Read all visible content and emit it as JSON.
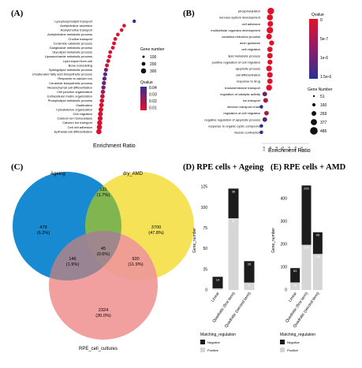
{
  "panels": {
    "A": {
      "letter": "(A)"
    },
    "B": {
      "letter": "(B)"
    },
    "C": {
      "letter": "(C)"
    },
    "D": {
      "letter": "(D)",
      "title": "RPE cells + Ageing"
    },
    "E": {
      "letter": "(E)",
      "title": "RPE cells + AMD"
    }
  },
  "chart_data": [
    {
      "id": "A",
      "type": "scatter",
      "xlabel": "Enrichment Ratio",
      "ylabel": "",
      "size_legend_title": "Gene number",
      "size_legend_values": [
        "100",
        "200",
        "300"
      ],
      "color_legend_title": "Qvalue",
      "color_legend_ticks": [
        "0.04",
        "0.03",
        "0.02",
        "0.01"
      ],
      "color_scale": [
        "#e0112a",
        "#3a2b95"
      ],
      "categories": [
        "Lysophospholipid transport",
        "Acetylcholine secretion",
        "Acetylcholine transport",
        "Acetylcholine metabolic process",
        "Choline transport",
        "Ceramide catabolic process",
        "Ganglioside metabolic process",
        "Glycolipid metabolic process",
        "Liposaccharide metabolic process",
        "Lipid export from cell",
        "Bone remodeling",
        "Sphingolipid metabolic process",
        "Unsaturated fatty acid biosynthetic process",
        "Response to calcium ion",
        "Ceramide biosynthetic process",
        "Mesenchymal cell differentiation",
        "Cell junction organization",
        "Extracellular matrix organization",
        "Phospholipid metabolic process",
        "Ossification",
        "Cytoskeleton organization",
        "Cell migration",
        "Calcium ion homeostasis",
        "Calcium ion transport",
        "Cell cell adhesion",
        "Epithelial cell differentiation"
      ],
      "enrichment": [
        21.0,
        17.0,
        16.0,
        14.5,
        13.5,
        13.0,
        12.5,
        11.5,
        11.2,
        10.7,
        10.2,
        9.8,
        9.5,
        9.2,
        9.0,
        8.8,
        8.6,
        8.4,
        8.2,
        8.0,
        7.8,
        7.6,
        7.5,
        7.3,
        7.2,
        7.0
      ],
      "qvalue": [
        0.04,
        0.012,
        0.01,
        0.011,
        0.012,
        0.012,
        0.01,
        0.012,
        0.011,
        0.013,
        0.013,
        0.03,
        0.035,
        0.035,
        0.03,
        0.032,
        0.02,
        0.015,
        0.012,
        0.01,
        0.012,
        0.012,
        0.012,
        0.012,
        0.012,
        0.012
      ],
      "gene_number": [
        60,
        70,
        70,
        75,
        80,
        85,
        85,
        90,
        95,
        100,
        105,
        110,
        115,
        120,
        125,
        130,
        140,
        150,
        160,
        170,
        180,
        200,
        220,
        240,
        260,
        280
      ]
    },
    {
      "id": "B",
      "type": "scatter",
      "xlabel": "Enrichment Ratio",
      "ylabel": "",
      "x_ticks": [
        "0.5",
        "1.0",
        "1.5",
        "2.0",
        "2.5",
        "3.0",
        "3.5"
      ],
      "color_legend_title": "Qvalue",
      "color_legend_ticks": [
        "0",
        "5e-7",
        "1e-6",
        "1.5e-6"
      ],
      "color_scale": [
        "#e0112a",
        "#2a2f8f"
      ],
      "size_legend_title": "Gene Number",
      "size_legend_values": [
        "51",
        "160",
        "269",
        "377",
        "486"
      ],
      "categories": [
        "phosphorylation",
        "nervous system development",
        "cell adhesion",
        "multicellular organism development",
        "oxidation-reduction process",
        "axon guidance",
        "cell migration",
        "lipid metabolic process",
        "positive regulation of cell migration",
        "apoptotic process",
        "cell differentiation",
        "response to drug",
        "transmembrane transport",
        "regulation of catalytic activity",
        "ion transport",
        "electron transport chain",
        "regulation of cell migration",
        "negative regulation of apoptotic process",
        "response to organic cyclic compound",
        "muscle contraction"
      ],
      "enrichment": [
        3.4,
        3.3,
        3.35,
        3.3,
        3.2,
        3.5,
        3.3,
        3.3,
        3.3,
        3.2,
        3.3,
        3.3,
        3.2,
        2.7,
        2.8,
        2.3,
        2.9,
        2.7,
        2.3,
        2.3
      ],
      "qvalue": [
        0,
        0,
        0,
        0,
        0,
        0,
        0,
        0,
        0,
        0,
        0,
        0,
        0,
        1e-06,
        5e-07,
        1.5e-06,
        5e-07,
        1.2e-06,
        1.5e-06,
        1.5e-06
      ],
      "gene_number": [
        486,
        377,
        300,
        486,
        300,
        200,
        250,
        270,
        200,
        320,
        300,
        250,
        350,
        160,
        180,
        51,
        150,
        160,
        51,
        51
      ]
    },
    {
      "id": "C",
      "type": "venn",
      "sets": [
        "Ageing",
        "dry_AMD",
        "RPE_cell_cultures"
      ],
      "colors": [
        "#2ba9e0",
        "#f4e04d",
        "#f3aaaa"
      ],
      "regions": [
        {
          "sets": "Ageing only",
          "count": "479",
          "pct": "(6.2%)"
        },
        {
          "sets": "dry_AMD only",
          "count": "3700",
          "pct": "(47.8%)"
        },
        {
          "sets": "RPE only",
          "count": "2324",
          "pct": "(30.0%)"
        },
        {
          "sets": "Ageing & dry_AMD",
          "count": "131",
          "pct": "(1.7%)"
        },
        {
          "sets": "Ageing & RPE",
          "count": "146",
          "pct": "(1.9%)"
        },
        {
          "sets": "dry_AMD & RPE",
          "count": "920",
          "pct": "(11.9%)"
        },
        {
          "sets": "all",
          "count": "45",
          "pct": "(0.6%)"
        }
      ]
    },
    {
      "id": "D",
      "type": "bar",
      "stacked": true,
      "ylabel": "Gene_number",
      "ylim": [
        0,
        130
      ],
      "y_ticks": [
        0,
        25,
        50,
        75,
        100,
        125
      ],
      "categories": [
        "Linear",
        "Quadratic (first term)",
        "Quadratic (second term)"
      ],
      "series": [
        {
          "name": "Negative",
          "color": "#1c1c1c",
          "values": [
            14,
            36,
            26
          ]
        },
        {
          "name": "Positive",
          "color": "#d6d6d6",
          "values": [
            2,
            87,
            9
          ]
        }
      ],
      "data_labels": {
        "negative": [
          "14",
          "36",
          "26"
        ],
        "positive": [
          "2",
          "87",
          "9"
        ]
      },
      "legend_title": "Matching_regulation"
    },
    {
      "id": "E",
      "type": "bar",
      "stacked": true,
      "ylabel": "Gene_number",
      "ylim": [
        0,
        480
      ],
      "y_ticks": [
        0,
        100,
        200,
        300,
        400
      ],
      "categories": [
        "Linear",
        "Quadratic (first term)",
        "Quadratic (second term)"
      ],
      "series": [
        {
          "name": "Negative",
          "color": "#1c1c1c",
          "values": [
            63,
            260,
            95
          ]
        },
        {
          "name": "Positive",
          "color": "#d6d6d6",
          "values": [
            33,
            198,
            158
          ]
        }
      ],
      "data_labels": {
        "negative": [
          "63",
          "260",
          "95"
        ],
        "positive": [
          "33",
          "198",
          "158"
        ]
      },
      "legend_title": "Matching_regulation"
    }
  ]
}
